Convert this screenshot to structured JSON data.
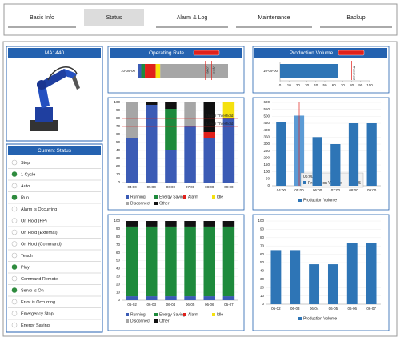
{
  "tabs": [
    "Basic Info",
    "Status",
    "Alarm & Log",
    "Maintenance",
    "Backup"
  ],
  "selected_tab": 1,
  "device": {
    "name": "MA1440"
  },
  "status": {
    "title": "Current Status",
    "items": [
      {
        "label": "Step",
        "on": false
      },
      {
        "label": "1 Cycle",
        "on": true
      },
      {
        "label": "Auto",
        "on": false
      },
      {
        "label": "Run",
        "on": true
      },
      {
        "label": "Alarm is Occurring",
        "on": false
      },
      {
        "label": "On Hold (PP)",
        "on": false
      },
      {
        "label": "On Hold (External)",
        "on": false
      },
      {
        "label": "On Hold (Command)",
        "on": false
      },
      {
        "label": "Teach",
        "on": false
      },
      {
        "label": "Play",
        "on": true
      },
      {
        "label": "Command Remote",
        "on": false
      },
      {
        "label": "Servo is On",
        "on": true
      },
      {
        "label": "Error is Occurring",
        "on": false
      },
      {
        "label": "Emergency Stop",
        "on": false
      },
      {
        "label": "Energy Saving",
        "on": false
      }
    ]
  },
  "chart_data": [
    {
      "type": "hbar_stacked",
      "title": "Operating Rate",
      "categories": [
        "10-09-00"
      ],
      "xlim": [
        0,
        100
      ],
      "series": [
        {
          "name": "Running",
          "color": "#3b5bb5",
          "values": [
            4
          ]
        },
        {
          "name": "Energy Saving",
          "color": "#1e8a3c",
          "values": [
            4
          ]
        },
        {
          "name": "Alarm",
          "color": "#e0201b",
          "values": [
            12
          ]
        },
        {
          "name": "Idle",
          "color": "#f5e10f",
          "values": [
            5
          ]
        },
        {
          "name": "Disconnect",
          "color": "#a6a6a6",
          "values": [
            75
          ]
        }
      ],
      "thresholds": [
        {
          "label": "Lower",
          "value": 75
        },
        {
          "label": "Upper",
          "value": 82
        }
      ]
    },
    {
      "type": "hbar",
      "title": "Production Volume",
      "categories": [
        "10-09-00"
      ],
      "values": [
        65
      ],
      "color": "#2e75b6",
      "xlim": [
        0,
        100
      ],
      "xticks": [
        0,
        10,
        20,
        30,
        40,
        50,
        60,
        70,
        80,
        90,
        100
      ],
      "thresholds": [
        {
          "label": "Threshold",
          "value": 80
        }
      ]
    },
    {
      "type": "stacked_bar",
      "categories": [
        "04:00",
        "05:00",
        "06:00",
        "07:00",
        "08:00",
        "09:00"
      ],
      "ylim": [
        0,
        100
      ],
      "yticks": [
        0,
        10,
        20,
        30,
        40,
        50,
        60,
        70,
        80,
        90,
        100
      ],
      "series": [
        {
          "name": "Running",
          "color": "#3b5bb5",
          "values": [
            55,
            97,
            40,
            70,
            55,
            80
          ]
        },
        {
          "name": "Energy Saving",
          "color": "#1e8a3c",
          "values": [
            0,
            0,
            52,
            0,
            0,
            0
          ]
        },
        {
          "name": "Alarm",
          "color": "#e0201b",
          "values": [
            0,
            0,
            0,
            0,
            8,
            0
          ]
        },
        {
          "name": "Idle",
          "color": "#f5e10f",
          "values": [
            0,
            0,
            0,
            0,
            0,
            20
          ]
        },
        {
          "name": "Disconnect",
          "color": "#a6a6a6",
          "values": [
            45,
            0,
            0,
            30,
            0,
            0
          ]
        },
        {
          "name": "Other",
          "color": "#111111",
          "values": [
            0,
            3,
            8,
            0,
            37,
            0
          ]
        }
      ],
      "thresholds": [
        {
          "label": "Upper Threshold",
          "value": 80
        },
        {
          "label": "Lower Threshold",
          "value": 70
        }
      ]
    },
    {
      "type": "bar",
      "categories": [
        "04:00",
        "05:00",
        "06:00",
        "07:00",
        "08:00",
        "09:00"
      ],
      "ylim": [
        0,
        600
      ],
      "yticks": [
        0,
        50,
        100,
        150,
        200,
        250,
        300,
        350,
        400,
        450,
        500,
        550,
        600
      ],
      "series": [
        {
          "name": "Production Volume",
          "color": "#2e75b6",
          "values": [
            460,
            505,
            350,
            300,
            450,
            450
          ]
        }
      ],
      "highlight_index": 1
    },
    {
      "type": "stacked_bar",
      "categories": [
        "06-02",
        "06-03",
        "06-04",
        "06-05",
        "06-06",
        "06-07"
      ],
      "ylim": [
        0,
        100
      ],
      "yticks": [
        0,
        10,
        20,
        30,
        40,
        50,
        60,
        70,
        80,
        90,
        100
      ],
      "series": [
        {
          "name": "Running",
          "color": "#3b5bb5",
          "values": [
            5,
            5,
            5,
            5,
            5,
            5
          ]
        },
        {
          "name": "Energy Saving",
          "color": "#1e8a3c",
          "values": [
            88,
            88,
            88,
            88,
            88,
            88
          ]
        },
        {
          "name": "Alarm",
          "color": "#e0201b",
          "values": [
            0,
            0,
            0,
            0,
            0,
            0
          ]
        },
        {
          "name": "Idle",
          "color": "#f5e10f",
          "values": [
            0,
            0,
            0,
            0,
            0,
            0
          ]
        },
        {
          "name": "Disconnect",
          "color": "#a6a6a6",
          "values": [
            0,
            0,
            0,
            0,
            0,
            0
          ]
        },
        {
          "name": "Other",
          "color": "#111111",
          "values": [
            7,
            7,
            7,
            7,
            7,
            7
          ]
        }
      ]
    },
    {
      "type": "bar",
      "categories": [
        "06-02",
        "06-03",
        "06-04",
        "06-05",
        "06-06",
        "06-07"
      ],
      "ylim": [
        0,
        100
      ],
      "yticks": [
        0,
        10,
        20,
        30,
        40,
        50,
        60,
        70,
        80,
        90,
        100
      ],
      "series": [
        {
          "name": "Production Volume",
          "color": "#2e75b6",
          "values": [
            65,
            65,
            48,
            48,
            74,
            74
          ]
        }
      ]
    }
  ]
}
